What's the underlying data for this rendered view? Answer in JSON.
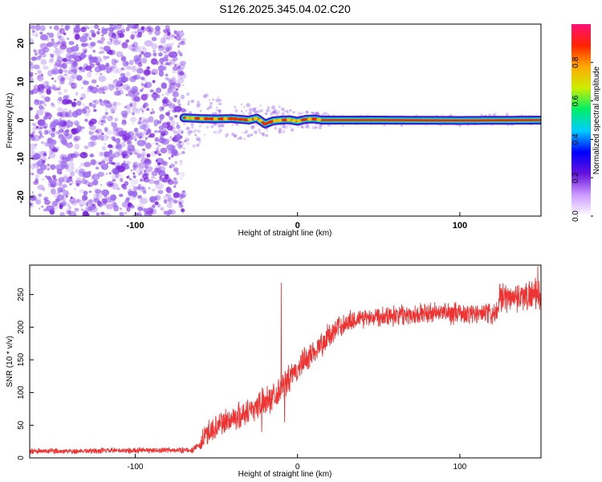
{
  "title": "S126.2025.345.04.02.C20",
  "colors": {
    "signal": "#ee3333",
    "speckle": "#9966ee",
    "axis": "#000000",
    "trace_core": "#ee2222"
  },
  "chart_data": [
    {
      "type": "heatmap",
      "xlabel": "Height of straight line (km)",
      "ylabel": "Frequency (Hz)",
      "xlim": [
        -165,
        150
      ],
      "ylim": [
        -25,
        25
      ],
      "x_ticks": [
        {
          "value": -100,
          "label": "-100"
        },
        {
          "value": 0,
          "label": "0"
        },
        {
          "value": 100,
          "label": "100"
        }
      ],
      "y_ticks": [
        {
          "value": 20,
          "label": "20"
        },
        {
          "value": 10,
          "label": "10"
        },
        {
          "value": 0,
          "label": "0"
        },
        {
          "value": -10,
          "label": "-10"
        },
        {
          "value": -20,
          "label": "-20"
        }
      ],
      "noise_region_x": [
        -165,
        -70
      ],
      "signal_start_x": -70,
      "trace_freq_hz": [
        [
          -70,
          0.6
        ],
        [
          -65,
          0.5
        ],
        [
          -60,
          0.4
        ],
        [
          -50,
          0.3
        ],
        [
          -40,
          0.4
        ],
        [
          -30,
          0.0
        ],
        [
          -25,
          0.5
        ],
        [
          -20,
          -1.0
        ],
        [
          -15,
          -0.2
        ],
        [
          -10,
          0.0
        ],
        [
          -5,
          0.1
        ],
        [
          0,
          -0.3
        ],
        [
          5,
          0.2
        ],
        [
          10,
          0.3
        ],
        [
          15,
          0.0
        ],
        [
          50,
          0.0
        ],
        [
          100,
          -0.1
        ],
        [
          150,
          0.0
        ]
      ],
      "colorbar": {
        "label": "Normalized spectral amplitude",
        "range": [
          0.0,
          1.0
        ],
        "ticks": [
          {
            "value": 0.0,
            "label": "0.0"
          },
          {
            "value": 0.2,
            "label": "0.2"
          },
          {
            "value": 0.4,
            "label": "0.4"
          },
          {
            "value": 0.6,
            "label": "0.6"
          },
          {
            "value": 0.8,
            "label": "0.8"
          }
        ],
        "stops": [
          "#ffffff",
          "#cc99ff",
          "#6611dd",
          "#0000ff",
          "#00ccff",
          "#00ee66",
          "#ccee00",
          "#ffaa00",
          "#ff2200",
          "#ff1177"
        ]
      }
    },
    {
      "type": "line",
      "xlabel": "Height of straight line (km)",
      "ylabel": "SNR (10 * v/v)",
      "xlim": [
        -165,
        150
      ],
      "ylim": [
        0,
        295
      ],
      "x_ticks": [
        {
          "value": -100,
          "label": "-100"
        },
        {
          "value": 0,
          "label": "0"
        },
        {
          "value": 100,
          "label": "100"
        }
      ],
      "y_ticks": [
        {
          "value": 250,
          "label": "250"
        },
        {
          "value": 200,
          "label": "200"
        },
        {
          "value": 150,
          "label": "150"
        },
        {
          "value": 100,
          "label": "100"
        },
        {
          "value": 50,
          "label": "50"
        },
        {
          "value": 0,
          "label": "0"
        }
      ],
      "series": [
        {
          "name": "SNR",
          "anchors": [
            [
              -165,
              10
            ],
            [
              -65,
              12
            ],
            [
              -60,
              20
            ],
            [
              -55,
              40
            ],
            [
              -45,
              55
            ],
            [
              -35,
              65
            ],
            [
              -25,
              80
            ],
            [
              -15,
              95
            ],
            [
              -5,
              120
            ],
            [
              5,
              150
            ],
            [
              15,
              175
            ],
            [
              25,
              200
            ],
            [
              35,
              212
            ],
            [
              50,
              218
            ],
            [
              70,
              220
            ],
            [
              90,
              222
            ],
            [
              110,
              220
            ],
            [
              122,
              220
            ],
            [
              124,
              245
            ],
            [
              150,
              250
            ]
          ],
          "noise_amplitude": [
            [
              -165,
              5
            ],
            [
              -61,
              5
            ],
            [
              -59,
              22
            ],
            [
              -30,
              25
            ],
            [
              0,
              25
            ],
            [
              20,
              22
            ],
            [
              40,
              18
            ],
            [
              122,
              20
            ],
            [
              124,
              25
            ],
            [
              150,
              28
            ]
          ],
          "spikes": [
            {
              "x": -10,
              "y": 268
            },
            {
              "x": -8,
              "y": 55
            },
            {
              "x": -22,
              "y": 40
            },
            {
              "x": 148,
              "y": 293
            }
          ]
        }
      ]
    }
  ]
}
